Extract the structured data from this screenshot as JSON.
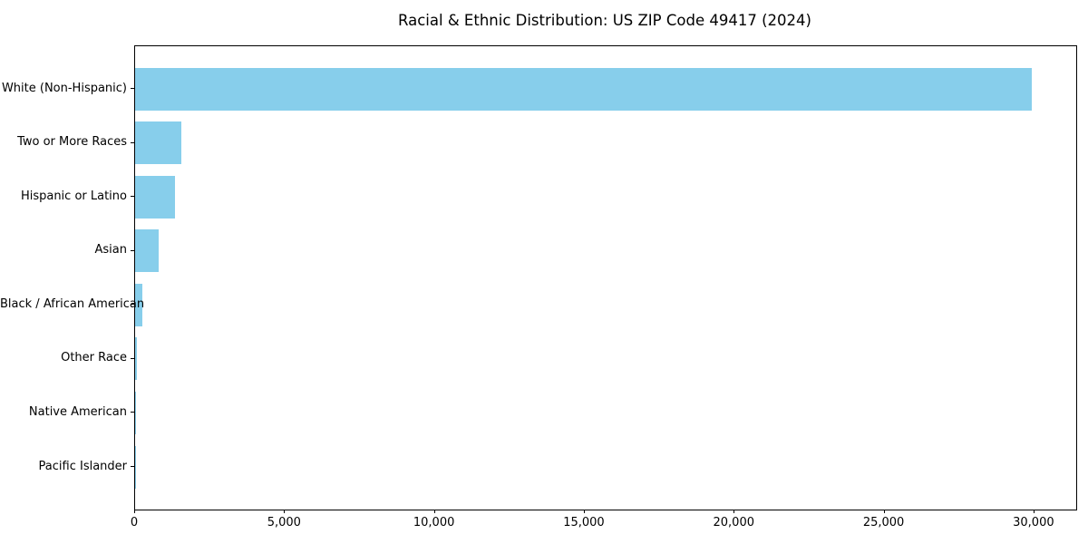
{
  "chart_data": {
    "type": "bar",
    "orientation": "horizontal",
    "title": "Racial & Ethnic Distribution: US ZIP Code 49417 (2024)",
    "categories": [
      "White (Non-Hispanic)",
      "Two or More Races",
      "Hispanic or Latino",
      "Asian",
      "Black / African American",
      "Other Race",
      "Native American",
      "Pacific Islander"
    ],
    "values": [
      29900,
      1550,
      1330,
      780,
      250,
      60,
      20,
      5
    ],
    "xlabel": "",
    "ylabel": "",
    "xlim": [
      0,
      31395
    ],
    "xticks": [
      0,
      5000,
      10000,
      15000,
      20000,
      25000,
      30000
    ],
    "xtick_labels": [
      "0",
      "5,000",
      "10,000",
      "15,000",
      "20,000",
      "25,000",
      "30,000"
    ],
    "bar_color": "#87CEEB",
    "text_color": "#000000",
    "grid": false,
    "legend": null
  }
}
